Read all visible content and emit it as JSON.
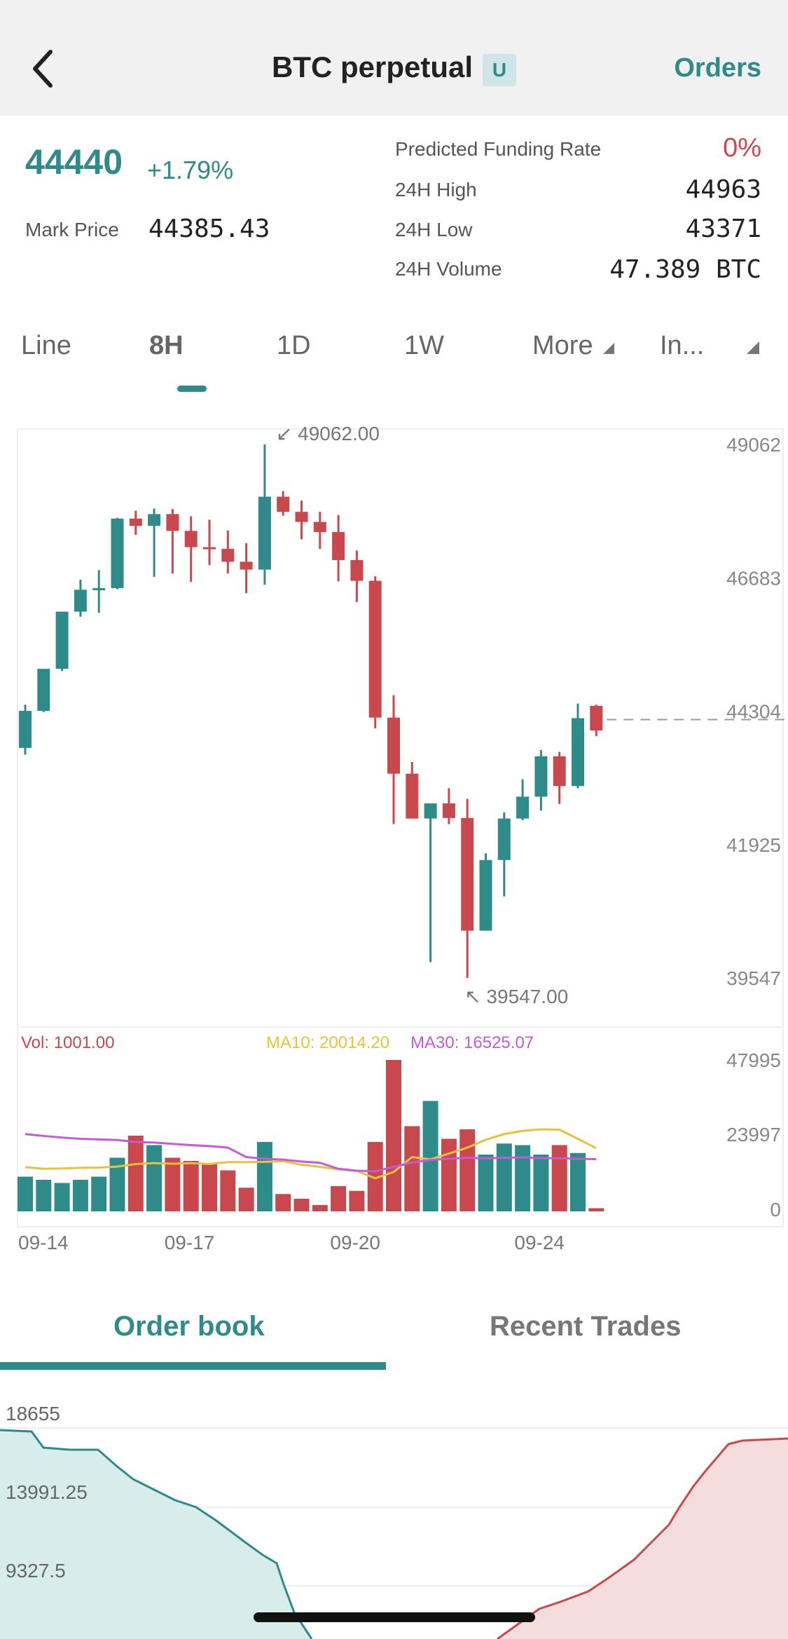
{
  "header": {
    "title": "BTC perpetual",
    "badge": "U",
    "orders_label": "Orders"
  },
  "ticker": {
    "last_price": "44440",
    "change_pct": "+1.79%",
    "mark_price_label": "Mark Price",
    "mark_price": "44385.43",
    "predicted_funding_label": "Predicted Funding Rate",
    "predicted_funding": "0%",
    "high_label": "24H High",
    "high": "44963",
    "low_label": "24H Low",
    "low": "43371",
    "volume_label": "24H Volume",
    "volume": "47.389 BTC"
  },
  "period_tabs": [
    {
      "label": "Line",
      "active": false
    },
    {
      "label": "8H",
      "active": true
    },
    {
      "label": "1D",
      "active": false
    },
    {
      "label": "1W",
      "active": false
    },
    {
      "label": "More",
      "active": false
    },
    {
      "label": "In...",
      "active": false
    }
  ],
  "colors": {
    "up": "#2f8b89",
    "down": "#c9484d",
    "ma10": "#e8c23a",
    "ma30": "#c45ad6",
    "grid": "#eeeeee"
  },
  "chart_data": {
    "type": "candlestick",
    "y_ticks": [
      "49062",
      "46683",
      "44304",
      "41925",
      "39547"
    ],
    "y_range": [
      39547,
      49062
    ],
    "max_label": "49062.00",
    "min_label": "39547.00",
    "current_price_line": 44304,
    "candles": [
      {
        "o": 43650,
        "h": 44420,
        "c": 44310,
        "l": 43530
      },
      {
        "o": 44310,
        "h": 45050,
        "c": 45060,
        "l": 44290
      },
      {
        "o": 45060,
        "h": 46080,
        "c": 46080,
        "l": 45020
      },
      {
        "o": 46080,
        "h": 46650,
        "c": 46470,
        "l": 45990
      },
      {
        "o": 46470,
        "h": 46820,
        "c": 46500,
        "l": 46060
      },
      {
        "o": 46500,
        "h": 47750,
        "c": 47740,
        "l": 46480
      },
      {
        "o": 47740,
        "h": 47880,
        "c": 47610,
        "l": 47450
      },
      {
        "o": 47610,
        "h": 47920,
        "c": 47820,
        "l": 46700
      },
      {
        "o": 47820,
        "h": 47910,
        "c": 47520,
        "l": 46760
      },
      {
        "o": 47520,
        "h": 47780,
        "c": 47230,
        "l": 46610
      },
      {
        "o": 47230,
        "h": 47720,
        "c": 47200,
        "l": 46910
      },
      {
        "o": 47200,
        "h": 47530,
        "c": 46970,
        "l": 46760
      },
      {
        "o": 46970,
        "h": 47300,
        "c": 46830,
        "l": 46410
      },
      {
        "o": 46830,
        "h": 49062,
        "c": 48130,
        "l": 46560
      },
      {
        "o": 48130,
        "h": 48230,
        "c": 47860,
        "l": 47790
      },
      {
        "o": 47860,
        "h": 48060,
        "c": 47680,
        "l": 47370
      },
      {
        "o": 47680,
        "h": 47860,
        "c": 47500,
        "l": 47200
      },
      {
        "o": 47500,
        "h": 47800,
        "c": 47000,
        "l": 46620
      },
      {
        "o": 47000,
        "h": 47170,
        "c": 46630,
        "l": 46250
      },
      {
        "o": 46630,
        "h": 46710,
        "c": 44190,
        "l": 44000
      },
      {
        "o": 44190,
        "h": 44590,
        "c": 43190,
        "l": 42290
      },
      {
        "o": 43190,
        "h": 43400,
        "c": 42390,
        "l": 42410
      },
      {
        "o": 42390,
        "h": 42660,
        "c": 42660,
        "l": 39830
      },
      {
        "o": 42660,
        "h": 42930,
        "c": 42400,
        "l": 42290
      },
      {
        "o": 42400,
        "h": 42740,
        "c": 40390,
        "l": 39547
      },
      {
        "o": 40390,
        "h": 41770,
        "c": 41650,
        "l": 40410
      },
      {
        "o": 41650,
        "h": 42500,
        "c": 42390,
        "l": 41000
      },
      {
        "o": 42390,
        "h": 43090,
        "c": 42780,
        "l": 42360
      },
      {
        "o": 42780,
        "h": 43610,
        "c": 43500,
        "l": 42530
      },
      {
        "o": 43500,
        "h": 43580,
        "c": 42970,
        "l": 42650
      },
      {
        "o": 42970,
        "h": 44440,
        "c": 44180,
        "l": 42930
      },
      {
        "o": 44400,
        "h": 44420,
        "c": 43960,
        "l": 43860
      }
    ],
    "x_labels": [
      {
        "index": 0,
        "label": "09-14"
      },
      {
        "index": 9,
        "label": "09-17"
      },
      {
        "index": 18,
        "label": "09-20"
      },
      {
        "index": 28,
        "label": "09-24"
      }
    ],
    "volume": {
      "label": "Vol: 1001.00",
      "ma10_label": "MA10: 20014.20",
      "ma30_label": "MA30: 16525.07",
      "y_ticks": [
        "47995",
        "23997",
        "0"
      ],
      "y_max": 47995,
      "values": [
        11000,
        10000,
        9000,
        10000,
        11000,
        17000,
        24000,
        21000,
        17000,
        16000,
        15000,
        13000,
        7500,
        22000,
        5500,
        4000,
        2000,
        8000,
        6500,
        22000,
        48000,
        27000,
        35000,
        23000,
        26000,
        18000,
        21500,
        21000,
        18000,
        21000,
        18500,
        1001
      ],
      "ma10": [
        14000,
        13500,
        13600,
        13800,
        13900,
        14200,
        15000,
        15300,
        15100,
        15300,
        15000,
        15600,
        15600,
        15700,
        15900,
        14800,
        14100,
        13300,
        12800,
        10500,
        12500,
        17200,
        16500,
        18300,
        20200,
        22700,
        24500,
        25500,
        26000,
        25900,
        23000,
        20014
      ],
      "ma30": [
        24500,
        23900,
        23400,
        23000,
        22800,
        22600,
        22000,
        21800,
        21400,
        21000,
        20700,
        20200,
        17200,
        16700,
        16400,
        15800,
        15400,
        13500,
        12900,
        12700,
        14100,
        15500,
        16300,
        16700,
        17000,
        16800,
        17000,
        17100,
        16900,
        16800,
        16700,
        16525
      ]
    }
  },
  "order_book_tabs": [
    {
      "label": "Order book",
      "active": true
    },
    {
      "label": "Recent Trades",
      "active": false
    }
  ],
  "depth_chart": {
    "y_ticks": [
      "18655",
      "13991.25",
      "9327.5"
    ]
  }
}
